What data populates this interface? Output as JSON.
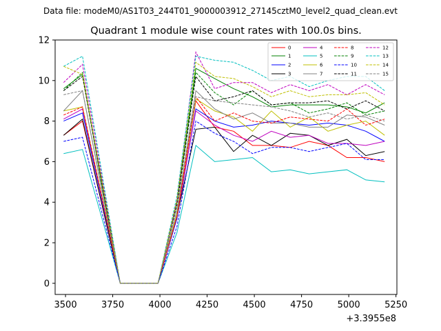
{
  "figure": {
    "suptitle": "Data file: modeM0/AS1T03_244T01_9000003912_27145cztM0_level2_quad_clean.evt",
    "offset_label": "+3.3955e8"
  },
  "chart_data": {
    "type": "line",
    "title": "Quadrant 1 module wise count rates with 100.0s bins.",
    "xlabel": "",
    "ylabel": "",
    "xlim": [
      3445,
      5255
    ],
    "ylim": [
      -0.55,
      12
    ],
    "xticks": [
      3500,
      3750,
      4000,
      4250,
      4500,
      4750,
      5000,
      5250
    ],
    "yticks": [
      0,
      2,
      4,
      6,
      8,
      10,
      12
    ],
    "x_offset_note": "+3.3955e8",
    "legend": "top-right",
    "grid": false,
    "x": [
      3490,
      3590,
      3690,
      3790,
      3890,
      3990,
      4090,
      4190,
      4290,
      4390,
      4490,
      4590,
      4690,
      4790,
      4890,
      4990,
      5090,
      5190
    ],
    "series": [
      {
        "name": "0",
        "color": "#ff0000",
        "dash": "solid",
        "values": [
          7.3,
          8.0,
          4.0,
          0,
          0,
          0,
          3.3,
          9.0,
          7.7,
          7.5,
          6.8,
          6.8,
          6.7,
          7.0,
          6.8,
          6.2,
          6.2,
          6.0
        ]
      },
      {
        "name": "1",
        "color": "#008000",
        "dash": "solid",
        "values": [
          9.6,
          10.3,
          5.0,
          0,
          0,
          0,
          4.0,
          10.6,
          10.1,
          9.6,
          9.2,
          8.7,
          8.8,
          8.8,
          8.8,
          8.7,
          8.4,
          8.9
        ]
      },
      {
        "name": "2",
        "color": "#0000ff",
        "dash": "solid",
        "values": [
          8.0,
          8.4,
          4.2,
          0,
          0,
          0,
          3.2,
          8.6,
          8.0,
          7.7,
          7.8,
          8.0,
          7.9,
          7.8,
          7.9,
          7.8,
          7.5,
          7.0
        ]
      },
      {
        "name": "3",
        "color": "#000000",
        "dash": "solid",
        "values": [
          7.3,
          8.1,
          4.0,
          0,
          0,
          0,
          3.3,
          7.6,
          7.7,
          6.5,
          7.3,
          6.8,
          7.4,
          7.3,
          6.8,
          7.1,
          6.3,
          6.5
        ]
      },
      {
        "name": "4",
        "color": "#bf00bf",
        "dash": "solid",
        "values": [
          8.1,
          8.6,
          4.3,
          0,
          0,
          0,
          3.3,
          8.5,
          7.8,
          7.3,
          7.0,
          7.5,
          7.2,
          7.3,
          6.9,
          6.9,
          6.8,
          7.0
        ]
      },
      {
        "name": "5",
        "color": "#00bfbf",
        "dash": "solid",
        "values": [
          6.4,
          6.6,
          3.3,
          0,
          0,
          0,
          2.5,
          6.8,
          6.0,
          6.1,
          6.2,
          5.5,
          5.6,
          5.4,
          5.5,
          5.6,
          5.1,
          5.0
        ]
      },
      {
        "name": "6",
        "color": "#bfbf00",
        "dash": "solid",
        "values": [
          8.5,
          8.7,
          4.4,
          0,
          0,
          0,
          3.4,
          9.1,
          8.5,
          8.2,
          7.5,
          8.5,
          7.7,
          8.2,
          7.5,
          7.8,
          8.0,
          7.3
        ]
      },
      {
        "name": "7",
        "color": "#808080",
        "dash": "solid",
        "values": [
          8.5,
          9.5,
          4.7,
          0,
          0,
          0,
          3.6,
          9.5,
          8.6,
          8.1,
          8.4,
          7.9,
          7.9,
          7.7,
          7.7,
          8.3,
          8.2,
          7.8
        ]
      },
      {
        "name": "8",
        "color": "#ff0000",
        "dash": "dashed",
        "values": [
          8.3,
          8.7,
          4.4,
          0,
          0,
          0,
          3.3,
          9.2,
          8.0,
          8.4,
          8.0,
          7.9,
          8.2,
          8.1,
          8.0,
          8.6,
          7.8,
          8.1
        ]
      },
      {
        "name": "9",
        "color": "#008000",
        "dash": "dashed",
        "values": [
          9.5,
          10.4,
          5.1,
          0,
          0,
          0,
          4.0,
          10.4,
          9.4,
          8.8,
          9.5,
          8.8,
          8.9,
          8.4,
          8.6,
          8.9,
          8.3,
          8.5
        ]
      },
      {
        "name": "10",
        "color": "#0000ff",
        "dash": "dashed",
        "values": [
          7.0,
          7.2,
          3.6,
          0,
          0,
          0,
          2.8,
          8.0,
          7.4,
          7.0,
          6.4,
          6.7,
          6.7,
          6.5,
          6.7,
          6.9,
          6.1,
          6.1
        ]
      },
      {
        "name": "11",
        "color": "#000000",
        "dash": "dashed",
        "values": [
          9.5,
          10.2,
          5.1,
          0,
          0,
          0,
          3.9,
          10.2,
          9.0,
          9.2,
          9.5,
          8.8,
          8.9,
          8.9,
          9.0,
          8.6,
          9.0,
          8.5
        ]
      },
      {
        "name": "12",
        "color": "#bf00bf",
        "dash": "dashed",
        "values": [
          9.9,
          10.8,
          5.4,
          0,
          0,
          0,
          4.1,
          11.4,
          9.6,
          9.9,
          9.9,
          9.4,
          9.8,
          9.5,
          9.8,
          9.3,
          9.8,
          9.3
        ]
      },
      {
        "name": "13",
        "color": "#00bfbf",
        "dash": "dashed",
        "values": [
          10.7,
          11.2,
          5.6,
          0,
          0,
          0,
          4.3,
          11.2,
          11.0,
          10.9,
          10.5,
          10.0,
          10.2,
          9.7,
          10.0,
          10.2,
          10.2,
          9.5
        ]
      },
      {
        "name": "14",
        "color": "#bfbf00",
        "dash": "dashed",
        "values": [
          10.7,
          10.3,
          5.2,
          0,
          0,
          0,
          4.1,
          10.9,
          10.2,
          10.1,
          9.7,
          9.2,
          9.5,
          9.2,
          9.3,
          9.3,
          9.4,
          8.8
        ]
      },
      {
        "name": "15",
        "color": "#808080",
        "dash": "dashed",
        "values": [
          9.3,
          9.5,
          4.8,
          0,
          0,
          0,
          3.8,
          9.2,
          9.0,
          8.9,
          8.8,
          8.7,
          8.5,
          8.2,
          8.4,
          8.1,
          8.3,
          8.0
        ]
      }
    ]
  }
}
